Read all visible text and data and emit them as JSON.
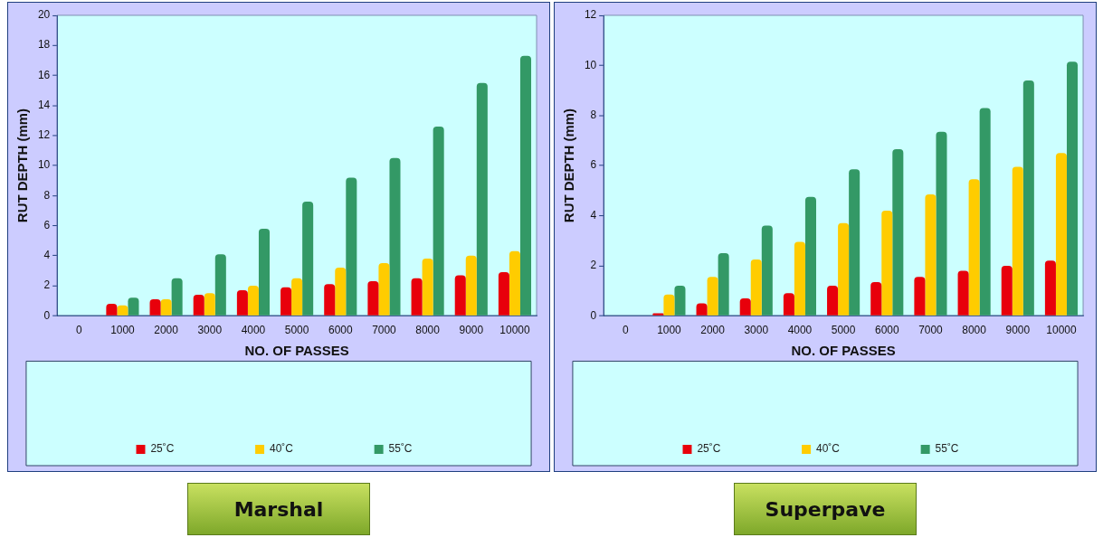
{
  "chart_data": [
    {
      "type": "bar",
      "title": "Marshal",
      "xlabel": "NO. OF PASSES",
      "ylabel": "RUT DEPTH (mm)",
      "categories": [
        "0",
        "1000",
        "2000",
        "3000",
        "4000",
        "5000",
        "6000",
        "7000",
        "8000",
        "9000",
        "10000"
      ],
      "series": [
        {
          "name": "25˚C",
          "color": "#e8000b",
          "values": [
            0,
            0.8,
            1.1,
            1.4,
            1.7,
            1.9,
            2.1,
            2.3,
            2.5,
            2.7,
            2.9
          ]
        },
        {
          "name": "40˚C",
          "color": "#ffcc00",
          "values": [
            0,
            0.7,
            1.1,
            1.5,
            2.0,
            2.5,
            3.2,
            3.5,
            3.8,
            4.0,
            4.3
          ]
        },
        {
          "name": "55˚C",
          "color": "#339966",
          "values": [
            0,
            1.2,
            2.5,
            4.1,
            5.8,
            7.6,
            9.2,
            10.5,
            12.6,
            15.5,
            17.3
          ]
        }
      ],
      "ylim": [
        0,
        20
      ],
      "yticks": [
        0,
        2,
        4,
        6,
        8,
        10,
        12,
        14,
        16,
        18,
        20
      ],
      "grid": false,
      "legend": "bottom"
    },
    {
      "type": "bar",
      "title": "Superpave",
      "xlabel": "NO. OF PASSES",
      "ylabel": "RUT DEPTH (mm)",
      "categories": [
        "0",
        "1000",
        "2000",
        "3000",
        "4000",
        "5000",
        "6000",
        "7000",
        "8000",
        "9000",
        "10000"
      ],
      "series": [
        {
          "name": "25˚C",
          "color": "#e8000b",
          "values": [
            0,
            0.1,
            0.5,
            0.7,
            0.9,
            1.2,
            1.35,
            1.55,
            1.8,
            2.0,
            2.2
          ]
        },
        {
          "name": "40˚C",
          "color": "#ffcc00",
          "values": [
            0,
            0.85,
            1.55,
            2.25,
            2.95,
            3.7,
            4.2,
            4.85,
            5.45,
            5.95,
            6.5
          ]
        },
        {
          "name": "55˚C",
          "color": "#339966",
          "values": [
            0,
            1.2,
            2.5,
            3.6,
            4.75,
            5.85,
            6.65,
            7.35,
            8.3,
            9.4,
            10.15
          ]
        }
      ],
      "ylim": [
        0,
        12
      ],
      "yticks": [
        0,
        2,
        4,
        6,
        8,
        10,
        12
      ],
      "grid": false,
      "legend": "bottom"
    }
  ]
}
